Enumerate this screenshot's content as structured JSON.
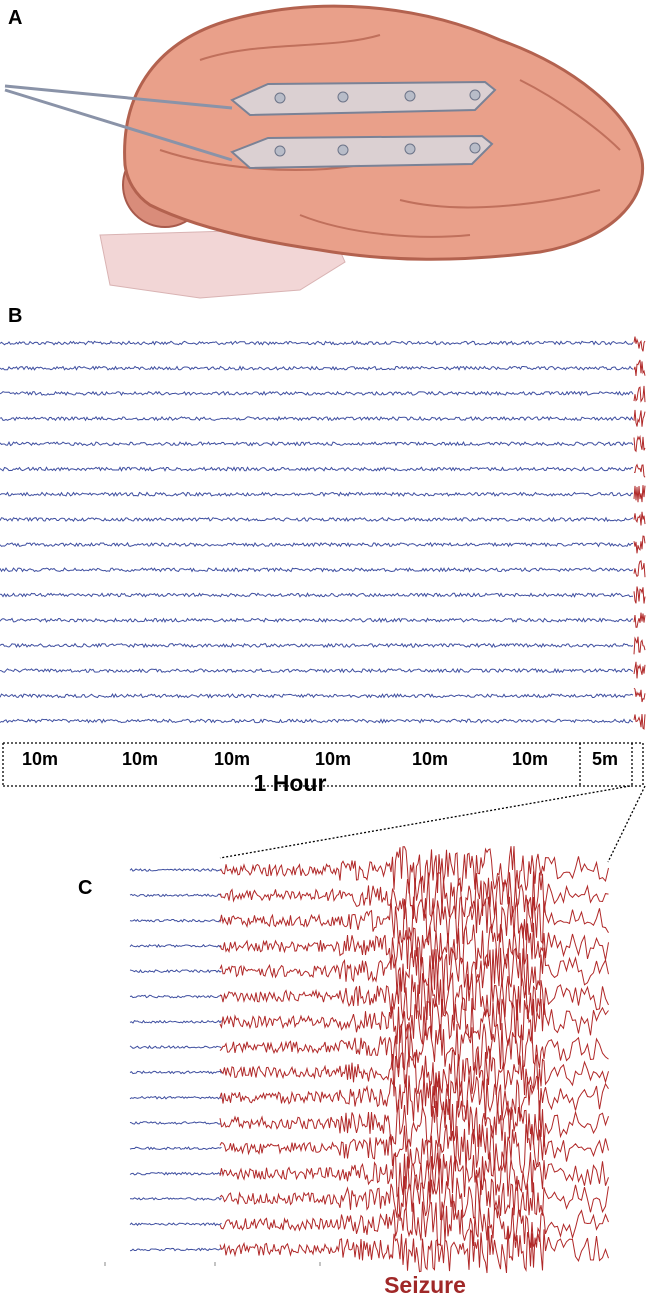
{
  "panels": {
    "a": {
      "label": "A"
    },
    "b": {
      "label": "B",
      "segments": [
        "10m",
        "10m",
        "10m",
        "10m",
        "10m",
        "10m",
        "5m"
      ],
      "total": "1 Hour"
    },
    "c": {
      "label": "C",
      "annotation": "Seizure"
    }
  }
}
